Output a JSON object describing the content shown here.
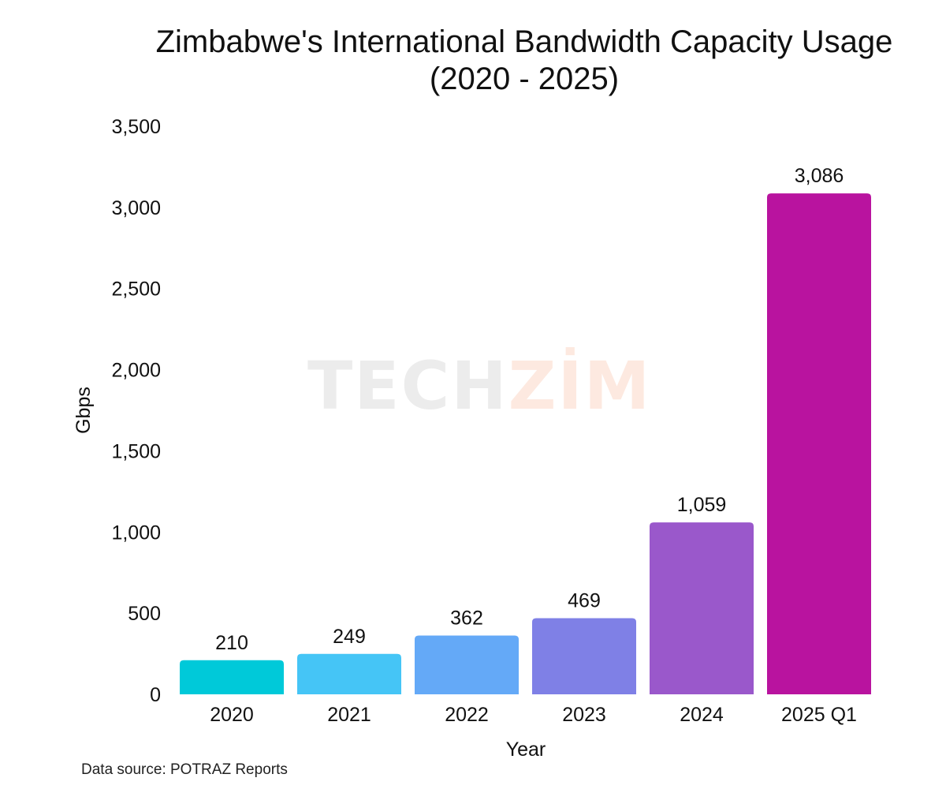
{
  "chart_data": {
    "type": "bar",
    "title": "Zimbabwe's International Bandwidth Capacity Usage (2020 - 2025)",
    "xlabel": "Year",
    "ylabel": "Gbps",
    "categories": [
      "2020",
      "2021",
      "2022",
      "2023",
      "2024",
      "2025 Q1"
    ],
    "values": [
      210,
      249,
      362,
      469,
      1059,
      3086
    ],
    "data_labels": [
      "210",
      "249",
      "362",
      "469",
      "1,059",
      "3,086"
    ],
    "colors": [
      "#00c9d9",
      "#45c5f6",
      "#64a9f7",
      "#7f80e6",
      "#9a58cb",
      "#b9139f"
    ],
    "ylim": [
      0,
      3500
    ],
    "yticks": [
      0,
      500,
      1000,
      1500,
      2000,
      2500,
      3000,
      3500
    ],
    "ytick_labels": [
      "0",
      "500",
      "1,000",
      "1,500",
      "2,000",
      "2,500",
      "3,000",
      "3,500"
    ],
    "grid": false,
    "legend": "none"
  },
  "source": "Data source: POTRAZ Reports",
  "watermark": {
    "part1": "TECH",
    "part2": "ZIM"
  }
}
